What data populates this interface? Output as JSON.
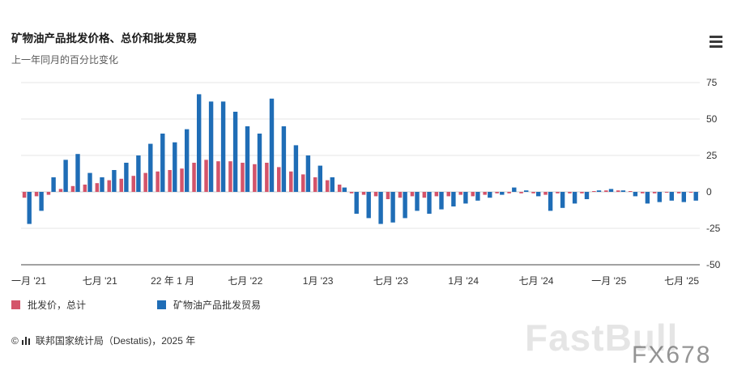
{
  "header": {
    "title": "矿物油产品批发价格、总价和批发贸易",
    "subtitle": "上一年同月的百分比变化"
  },
  "footer": {
    "copyright": "©",
    "source": "联邦国家统计局（Destatis)，2025 年"
  },
  "watermarks": {
    "fastbull": "FastBull",
    "fx678": "FX678"
  },
  "colors": {
    "wholesale_price": "#d4546a",
    "mineral_oil_trade": "#1f6db6",
    "gridline": "#e4e4e4",
    "axis": "#444444",
    "text": "#333333"
  },
  "chart_data": {
    "type": "bar",
    "title": "矿物油产品批发价格、总价和批发贸易",
    "subtitle": "上一年同月的百分比变化",
    "ylabel": "",
    "xlabel": "",
    "ylim": [
      -50,
      75
    ],
    "yticks": [
      75,
      50,
      25,
      0,
      -25,
      -50
    ],
    "grid": true,
    "legend_position": "bottom",
    "categories": [
      "2021-01",
      "2021-02",
      "2021-03",
      "2021-04",
      "2021-05",
      "2021-06",
      "2021-07",
      "2021-08",
      "2021-09",
      "2021-10",
      "2021-11",
      "2021-12",
      "2022-01",
      "2022-02",
      "2022-03",
      "2022-04",
      "2022-05",
      "2022-06",
      "2022-07",
      "2022-08",
      "2022-09",
      "2022-10",
      "2022-11",
      "2022-12",
      "2023-01",
      "2023-02",
      "2023-03",
      "2023-04",
      "2023-05",
      "2023-06",
      "2023-07",
      "2023-08",
      "2023-09",
      "2023-10",
      "2023-11",
      "2023-12",
      "2024-01",
      "2024-02",
      "2024-03",
      "2024-04",
      "2024-05",
      "2024-06",
      "2024-07",
      "2024-08",
      "2024-09",
      "2024-10",
      "2024-11",
      "2024-12",
      "2025-01",
      "2025-02",
      "2025-03",
      "2025-04",
      "2025-05",
      "2025-06",
      "2025-07",
      "2025-08"
    ],
    "xticks": [
      {
        "index": 0,
        "label": "一月 '21"
      },
      {
        "index": 6,
        "label": "七月 '21"
      },
      {
        "index": 12,
        "label": "22 年 1 月"
      },
      {
        "index": 18,
        "label": "七月 '22"
      },
      {
        "index": 24,
        "label": "1月 '23"
      },
      {
        "index": 30,
        "label": "七月 '23"
      },
      {
        "index": 36,
        "label": "1月 '24"
      },
      {
        "index": 42,
        "label": "七月 '24"
      },
      {
        "index": 48,
        "label": "一月 '25"
      },
      {
        "index": 54,
        "label": "七月 '25"
      }
    ],
    "series": [
      {
        "name": "批发价，总计",
        "color": "#d4546a",
        "values": [
          -4,
          -3,
          -2,
          2,
          4,
          5,
          6,
          8,
          9,
          11,
          13,
          14,
          15,
          16,
          20,
          22,
          21,
          21,
          20,
          19,
          20,
          17,
          14,
          12,
          10,
          8,
          5,
          -1,
          -2,
          -3,
          -5,
          -4,
          -3,
          -4,
          -3,
          -3,
          -2,
          -3,
          -2,
          -1,
          -1,
          -1,
          -1,
          -2,
          -1,
          -1,
          -1,
          0.5,
          1,
          1,
          0.5,
          -1,
          -1,
          -0.5,
          -1,
          -0.5
        ]
      },
      {
        "name": "矿物油产品批发贸易",
        "color": "#1f6db6",
        "values": [
          -22,
          -13,
          10,
          22,
          26,
          13,
          10,
          15,
          20,
          25,
          33,
          40,
          34,
          43,
          67,
          62,
          62,
          55,
          45,
          40,
          64,
          45,
          32,
          25,
          18,
          10,
          3,
          -15,
          -18,
          -22,
          -21,
          -18,
          -13,
          -15,
          -12,
          -10,
          -8,
          -6,
          -4,
          -2,
          3,
          1,
          -3,
          -13,
          -11,
          -8,
          -5,
          1,
          2,
          1,
          -3,
          -8,
          -7,
          -6,
          -7,
          -6
        ]
      }
    ]
  }
}
